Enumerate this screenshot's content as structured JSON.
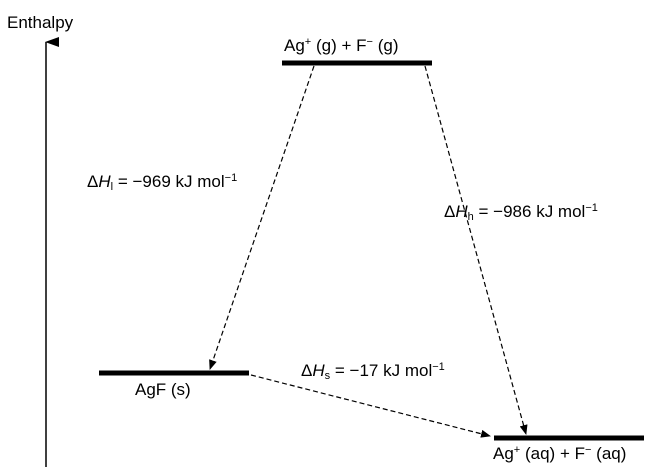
{
  "axis": {
    "label": "Enthalpy"
  },
  "levels": {
    "gas_ions": {
      "species_1": "Ag",
      "charge_1": "+",
      "state_1": "(g)",
      "plus": "+",
      "species_2": "F",
      "charge_2": "−",
      "state_2": "(g)"
    },
    "solid": {
      "text": "AgF (s)"
    },
    "aqueous_ions": {
      "species_1": "Ag",
      "charge_1": "+",
      "state_1": "(aq)",
      "plus": "+",
      "species_2": "F",
      "charge_2": "−",
      "state_2": "(aq)"
    }
  },
  "arrows": {
    "lattice": {
      "symbol": "Δ",
      "var": "H",
      "sub": "l",
      "eq": "=",
      "value": "−969",
      "unit": "kJ mol",
      "exp": "−1"
    },
    "hydration": {
      "symbol": "Δ",
      "var": "H",
      "sub": "h",
      "eq": "=",
      "value": "−986",
      "unit": "kJ mol",
      "exp": "−1"
    },
    "solution": {
      "symbol": "Δ",
      "var": "H",
      "sub": "s",
      "eq": "=",
      "value": "−17",
      "unit": "kJ mol",
      "exp": "−1"
    }
  }
}
